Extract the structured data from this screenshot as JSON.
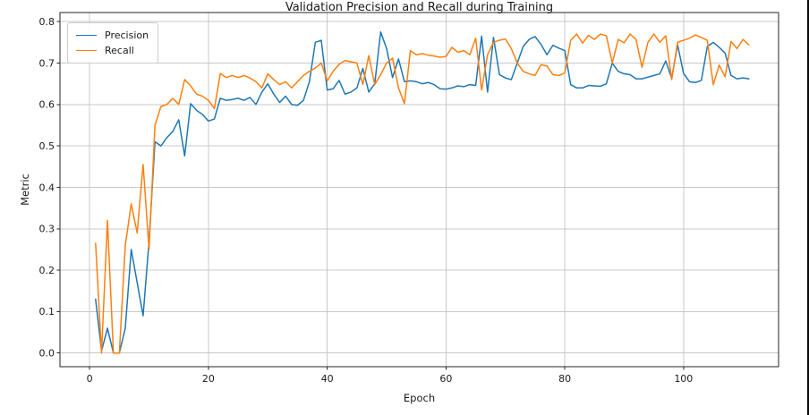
{
  "figure": {
    "title": "Validation Precision and Recall during Training",
    "xlabel": "Epoch",
    "ylabel": "Metric"
  },
  "legend": {
    "items": [
      {
        "label": "Precision",
        "color": "#1f77b4"
      },
      {
        "label": "Recall",
        "color": "#ff7f0e"
      }
    ]
  },
  "colors": {
    "precision": "#1f77b4",
    "recall": "#ff7f0e",
    "grid": "#c8c8c8",
    "spine": "#262626",
    "text": "#1a1a1a",
    "background": "#ffffff"
  },
  "chart_data": {
    "type": "line",
    "title": "Validation Precision and Recall during Training",
    "xlabel": "Epoch",
    "ylabel": "Metric",
    "xlim": [
      -5,
      116
    ],
    "ylim": [
      -0.033,
      0.822
    ],
    "xticks": [
      0,
      20,
      40,
      60,
      80,
      100
    ],
    "yticks": [
      0.0,
      0.1,
      0.2,
      0.3,
      0.4,
      0.5,
      0.6,
      0.7,
      0.8
    ],
    "grid": true,
    "legend_position": "upper left",
    "x": [
      1,
      2,
      3,
      4,
      5,
      6,
      7,
      8,
      9,
      10,
      11,
      12,
      13,
      14,
      15,
      16,
      17,
      18,
      19,
      20,
      21,
      22,
      23,
      24,
      25,
      26,
      27,
      28,
      29,
      30,
      31,
      32,
      33,
      34,
      35,
      36,
      37,
      38,
      39,
      40,
      41,
      42,
      43,
      44,
      45,
      46,
      47,
      48,
      49,
      50,
      51,
      52,
      53,
      54,
      55,
      56,
      57,
      58,
      59,
      60,
      61,
      62,
      63,
      64,
      65,
      66,
      67,
      68,
      69,
      70,
      71,
      72,
      73,
      74,
      75,
      76,
      77,
      78,
      79,
      80,
      81,
      82,
      83,
      84,
      85,
      86,
      87,
      88,
      89,
      90,
      91,
      92,
      93,
      94,
      95,
      96,
      97,
      98,
      99,
      100,
      101,
      102,
      103,
      104,
      105,
      106,
      107,
      108,
      109,
      110,
      111
    ],
    "series": [
      {
        "name": "Precision",
        "color": "#1f77b4",
        "values": [
          0.13,
          0.005,
          0.06,
          0.0,
          0.0,
          0.06,
          0.25,
          0.17,
          0.09,
          0.27,
          0.51,
          0.5,
          0.52,
          0.535,
          0.563,
          0.476,
          0.602,
          0.586,
          0.576,
          0.56,
          0.565,
          0.615,
          0.61,
          0.612,
          0.615,
          0.61,
          0.617,
          0.6,
          0.63,
          0.65,
          0.625,
          0.605,
          0.62,
          0.6,
          0.598,
          0.61,
          0.655,
          0.75,
          0.755,
          0.635,
          0.638,
          0.658,
          0.625,
          0.63,
          0.64,
          0.687,
          0.63,
          0.65,
          0.775,
          0.735,
          0.665,
          0.71,
          0.655,
          0.657,
          0.655,
          0.65,
          0.653,
          0.648,
          0.638,
          0.637,
          0.64,
          0.645,
          0.643,
          0.648,
          0.646,
          0.765,
          0.63,
          0.762,
          0.672,
          0.664,
          0.66,
          0.7,
          0.74,
          0.757,
          0.764,
          0.745,
          0.72,
          0.743,
          0.736,
          0.73,
          0.648,
          0.64,
          0.64,
          0.646,
          0.645,
          0.644,
          0.65,
          0.7,
          0.68,
          0.674,
          0.672,
          0.662,
          0.662,
          0.666,
          0.67,
          0.674,
          0.705,
          0.663,
          0.744,
          0.675,
          0.655,
          0.653,
          0.658,
          0.74,
          0.75,
          0.738,
          0.724,
          0.67,
          0.662,
          0.664,
          0.662
        ]
      },
      {
        "name": "Recall",
        "color": "#ff7f0e",
        "values": [
          0.265,
          0.0,
          0.32,
          0.0,
          0.0,
          0.26,
          0.36,
          0.29,
          0.455,
          0.25,
          0.55,
          0.595,
          0.6,
          0.615,
          0.6,
          0.66,
          0.645,
          0.625,
          0.62,
          0.61,
          0.59,
          0.675,
          0.665,
          0.67,
          0.665,
          0.67,
          0.664,
          0.655,
          0.64,
          0.674,
          0.66,
          0.648,
          0.655,
          0.64,
          0.655,
          0.67,
          0.68,
          0.688,
          0.7,
          0.657,
          0.68,
          0.697,
          0.706,
          0.703,
          0.7,
          0.648,
          0.718,
          0.648,
          0.672,
          0.7,
          0.712,
          0.64,
          0.602,
          0.73,
          0.72,
          0.723,
          0.719,
          0.717,
          0.714,
          0.716,
          0.738,
          0.726,
          0.73,
          0.72,
          0.76,
          0.635,
          0.72,
          0.75,
          0.755,
          0.758,
          0.735,
          0.7,
          0.68,
          0.674,
          0.67,
          0.696,
          0.693,
          0.672,
          0.67,
          0.676,
          0.755,
          0.77,
          0.748,
          0.767,
          0.757,
          0.77,
          0.766,
          0.7,
          0.757,
          0.749,
          0.77,
          0.757,
          0.69,
          0.75,
          0.77,
          0.75,
          0.766,
          0.66,
          0.75,
          0.755,
          0.76,
          0.768,
          0.762,
          0.755,
          0.648,
          0.695,
          0.667,
          0.752,
          0.735,
          0.757,
          0.744
        ]
      }
    ]
  }
}
